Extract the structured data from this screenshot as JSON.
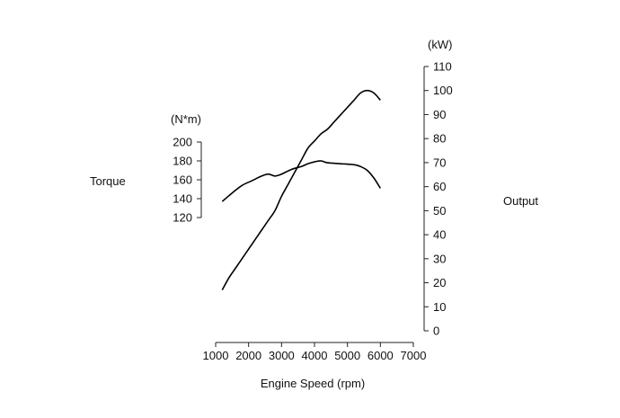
{
  "chart_data": {
    "type": "line",
    "title": "",
    "xlabel": "Engine Speed (rpm)",
    "xlim": [
      1000,
      7000
    ],
    "xticks": [
      1000,
      2000,
      3000,
      4000,
      5000,
      6000,
      7000
    ],
    "left_axis": {
      "label": "Torque",
      "unit": "(N*m)",
      "ylim": [
        120,
        200
      ],
      "ticks": [
        120,
        140,
        160,
        180,
        200
      ]
    },
    "right_axis": {
      "label": "Output",
      "unit": "(kW)",
      "ylim": [
        0,
        110
      ],
      "ticks": [
        0,
        10,
        20,
        30,
        40,
        50,
        60,
        70,
        80,
        90,
        100,
        110
      ]
    },
    "grid": false,
    "series": [
      {
        "axis": "left",
        "color": "#000000",
        "x": [
          1200,
          1500,
          1800,
          2100,
          2400,
          2600,
          2800,
          3000,
          3300,
          3600,
          3800,
          4000,
          4200,
          4400,
          4800,
          5200,
          5400,
          5600,
          5800,
          6000
        ],
        "y": [
          137,
          146,
          154,
          159,
          164,
          166,
          164,
          166,
          171,
          174,
          177,
          179,
          180,
          178,
          177,
          176,
          174,
          170,
          162,
          151
        ]
      },
      {
        "axis": "right",
        "color": "#000000",
        "x": [
          1200,
          1400,
          1600,
          1800,
          2000,
          2200,
          2400,
          2600,
          2800,
          3000,
          3200,
          3400,
          3600,
          3800,
          4000,
          4200,
          4400,
          4600,
          4800,
          5000,
          5200,
          5400,
          5600,
          5800,
          6000
        ],
        "y": [
          17,
          22,
          26,
          30,
          34,
          38,
          42,
          46,
          50,
          56,
          61,
          66,
          71,
          76,
          79,
          82,
          84,
          87,
          90,
          93,
          96,
          99,
          100,
          99,
          96
        ]
      }
    ]
  }
}
